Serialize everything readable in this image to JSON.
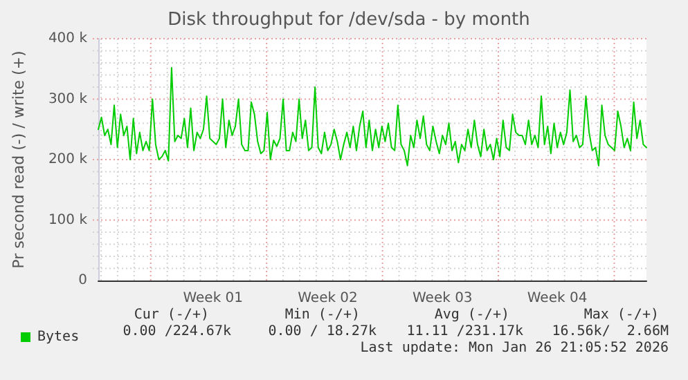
{
  "chart_data": {
    "type": "line",
    "title": "Disk throughput for /dev/sda - by month",
    "ylabel": "Pr second read (-) / write (+)",
    "categories": [
      null,
      null,
      null,
      null,
      null,
      null,
      null,
      null,
      null,
      null,
      null,
      null,
      null,
      null,
      null,
      null,
      null,
      null,
      null,
      null,
      null,
      null,
      null,
      null,
      null,
      null,
      null,
      null,
      null,
      null,
      null,
      null,
      null,
      null,
      null,
      null,
      "Week 01",
      null,
      null,
      null,
      null,
      null,
      null,
      null,
      null,
      null,
      null,
      null,
      null,
      null,
      null,
      null,
      null,
      null,
      null,
      null,
      null,
      null,
      null,
      null,
      null,
      null,
      null,
      null,
      null,
      null,
      null,
      null,
      null,
      null,
      null,
      null,
      "Week 02",
      null,
      null,
      null,
      null,
      null,
      null,
      null,
      null,
      null,
      null,
      null,
      null,
      null,
      null,
      null,
      null,
      null,
      null,
      null,
      null,
      null,
      null,
      null,
      null,
      null,
      null,
      null,
      null,
      null,
      null,
      null,
      null,
      null,
      null,
      null,
      "Week 03",
      null,
      null,
      null,
      null,
      null,
      null,
      null,
      null,
      null,
      null,
      null,
      null,
      null,
      null,
      null,
      null,
      null,
      null,
      null,
      null,
      null,
      null,
      null,
      null,
      null,
      null,
      null,
      null,
      null,
      null,
      null,
      null,
      null,
      null,
      null,
      "Week 04",
      null,
      null,
      null,
      null,
      null,
      null,
      null,
      null,
      null,
      null,
      null,
      null,
      null,
      null,
      null,
      null,
      null,
      null,
      null,
      null,
      null,
      null,
      null,
      null,
      null,
      null,
      null,
      null
    ],
    "ylim": [
      0,
      400000
    ],
    "yticks": [
      {
        "value": 0,
        "label": "0"
      },
      {
        "value": 20000,
        "label": null
      },
      {
        "value": 40000,
        "label": null
      },
      {
        "value": 60000,
        "label": null
      },
      {
        "value": 80000,
        "label": null
      },
      {
        "value": 100000,
        "label": "100 k"
      },
      {
        "value": 120000,
        "label": null
      },
      {
        "value": 140000,
        "label": null
      },
      {
        "value": 160000,
        "label": null
      },
      {
        "value": 180000,
        "label": null
      },
      {
        "value": 200000,
        "label": "200 k"
      },
      {
        "value": 220000,
        "label": null
      },
      {
        "value": 240000,
        "label": null
      },
      {
        "value": 260000,
        "label": null
      },
      {
        "value": 280000,
        "label": null
      },
      {
        "value": 300000,
        "label": "300 k"
      },
      {
        "value": 320000,
        "label": null
      },
      {
        "value": 340000,
        "label": null
      },
      {
        "value": 360000,
        "label": null
      },
      {
        "value": 380000,
        "label": null
      },
      {
        "value": 400000,
        "label": "400 k"
      }
    ],
    "grid": true,
    "legend": "bottom",
    "marker": "none",
    "line_style": "solid",
    "series": [
      {
        "name": "Bytes",
        "color": "#00cc00",
        "values": [
          250000,
          270000,
          240000,
          250000,
          225000,
          290000,
          220000,
          275000,
          240000,
          255000,
          200000,
          268000,
          210000,
          245000,
          215000,
          230000,
          215000,
          300000,
          225000,
          200000,
          205000,
          215000,
          198000,
          352000,
          230000,
          240000,
          235000,
          268000,
          220000,
          285000,
          215000,
          245000,
          235000,
          250000,
          305000,
          235000,
          230000,
          225000,
          235000,
          300000,
          220000,
          265000,
          240000,
          255000,
          300000,
          225000,
          215000,
          215000,
          295000,
          275000,
          230000,
          210000,
          215000,
          278000,
          200000,
          232000,
          222000,
          235000,
          300000,
          215000,
          215000,
          245000,
          230000,
          300000,
          235000,
          265000,
          215000,
          220000,
          320000,
          220000,
          210000,
          245000,
          215000,
          225000,
          250000,
          230000,
          200000,
          225000,
          245000,
          220000,
          255000,
          215000,
          255000,
          280000,
          220000,
          265000,
          215000,
          250000,
          220000,
          255000,
          230000,
          260000,
          220000,
          215000,
          290000,
          225000,
          215000,
          190000,
          240000,
          220000,
          265000,
          235000,
          272000,
          225000,
          215000,
          255000,
          230000,
          210000,
          240000,
          225000,
          260000,
          215000,
          230000,
          195000,
          225000,
          215000,
          250000,
          220000,
          265000,
          225000,
          205000,
          250000,
          215000,
          225000,
          200000,
          235000,
          205000,
          265000,
          220000,
          215000,
          275000,
          245000,
          240000,
          240000,
          225000,
          265000,
          225000,
          240000,
          220000,
          305000,
          225000,
          255000,
          210000,
          260000,
          220000,
          245000,
          225000,
          245000,
          315000,
          230000,
          240000,
          220000,
          225000,
          305000,
          245000,
          215000,
          220000,
          190000,
          290000,
          240000,
          225000,
          220000,
          215000,
          280000,
          255000,
          220000,
          235000,
          215000,
          295000,
          235000,
          265000,
          225000,
          220000
        ]
      }
    ],
    "annotations": [
      "Cur (-/+)",
      "Min (-/+)",
      "Avg (-/+)",
      "Max (-/+)",
      "0.00 /224.67k",
      "0.00 / 18.27k",
      "11.11 /231.17k",
      "16.56k/  2.66M",
      "Last update: Mon Jan 26 21:05:52 2026"
    ]
  }
}
